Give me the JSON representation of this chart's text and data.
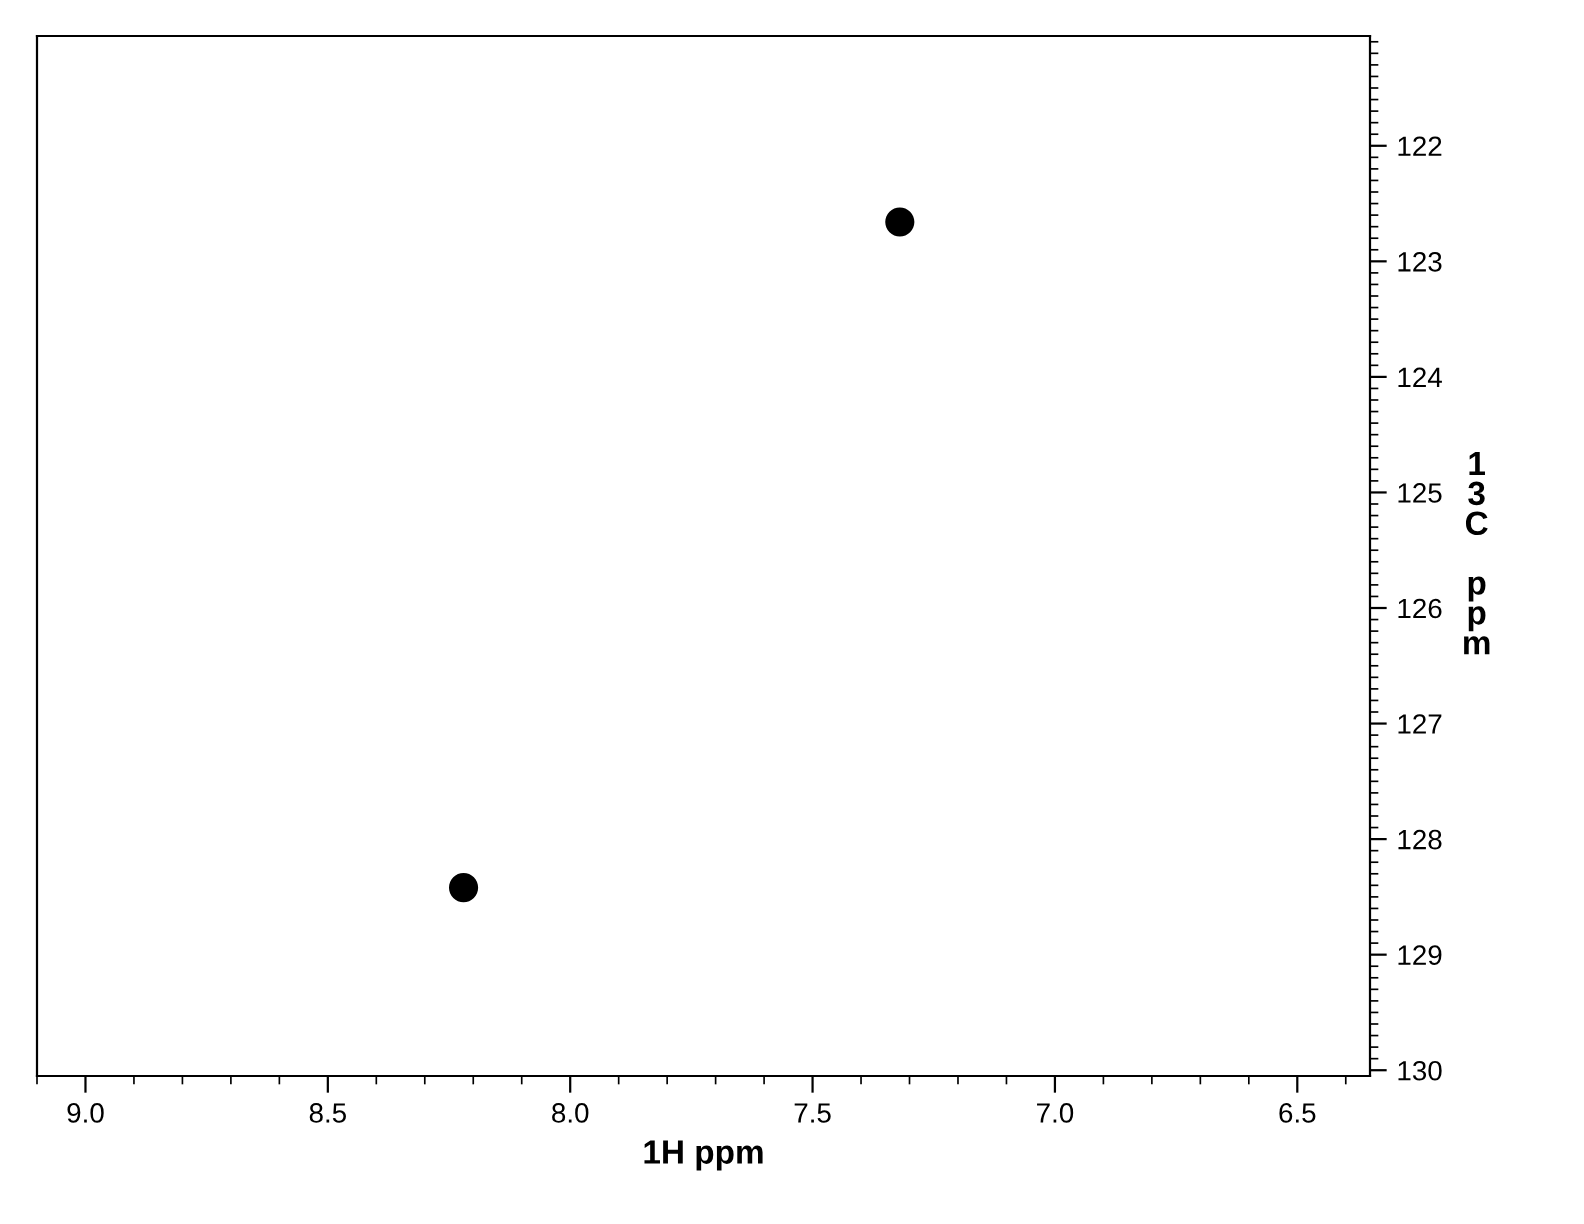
{
  "chart_data": {
    "type": "scatter",
    "xlabel": "1H ppm",
    "ylabel": "13C ppm",
    "x": [
      8.22,
      7.32
    ],
    "series": [
      {
        "color": "#000000",
        "values": [
          128.42,
          122.66
        ]
      }
    ],
    "xlim": [
      9.1,
      6.35
    ],
    "ylim": [
      130.05,
      121.05
    ],
    "xticks": [
      {
        "value": 9.0,
        "label": "9.0"
      },
      {
        "value": 8.5,
        "label": "8.5"
      },
      {
        "value": 8.0,
        "label": "8.0"
      },
      {
        "value": 7.5,
        "label": "7.5"
      },
      {
        "value": 7.0,
        "label": "7.0"
      },
      {
        "value": 6.5,
        "label": "6.5"
      }
    ],
    "yticks": [
      122,
      123,
      124,
      125,
      126,
      127,
      128,
      129,
      130
    ],
    "marker": "circle",
    "grid": false
  }
}
